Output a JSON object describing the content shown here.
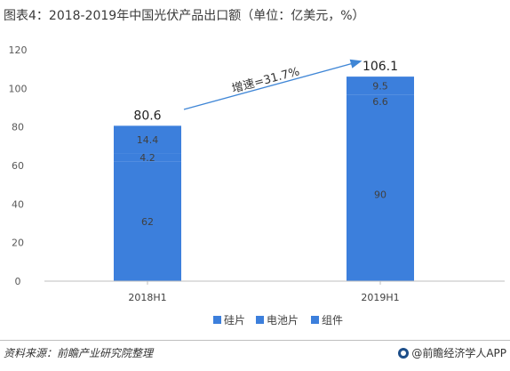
{
  "title": "图表4：2018-2019年中国光伏产品出口额（单位：亿美元，%）",
  "source": "资料来源：前瞻产业研究院整理",
  "brand": "@前瞻经济学人APP",
  "annotation": "增速=31.7%",
  "colors": {
    "bar": "#3c7fdc",
    "arrow": "#3f86d6",
    "grid": "#d9d9d9",
    "axis": "#bfbfbf"
  },
  "chart_data": {
    "type": "bar",
    "stacked": true,
    "categories": [
      "2018H1",
      "2019H1"
    ],
    "series": [
      {
        "name": "硅片",
        "values": [
          62,
          90
        ]
      },
      {
        "name": "电池片",
        "values": [
          4.2,
          6.6
        ]
      },
      {
        "name": "组件",
        "values": [
          14.4,
          9.5
        ]
      }
    ],
    "totals": [
      "80.6",
      "106.1"
    ],
    "ylim": [
      0,
      120
    ],
    "yticks": [
      0,
      20,
      40,
      60,
      80,
      100,
      120
    ],
    "legend": "bottom",
    "grid": false
  }
}
